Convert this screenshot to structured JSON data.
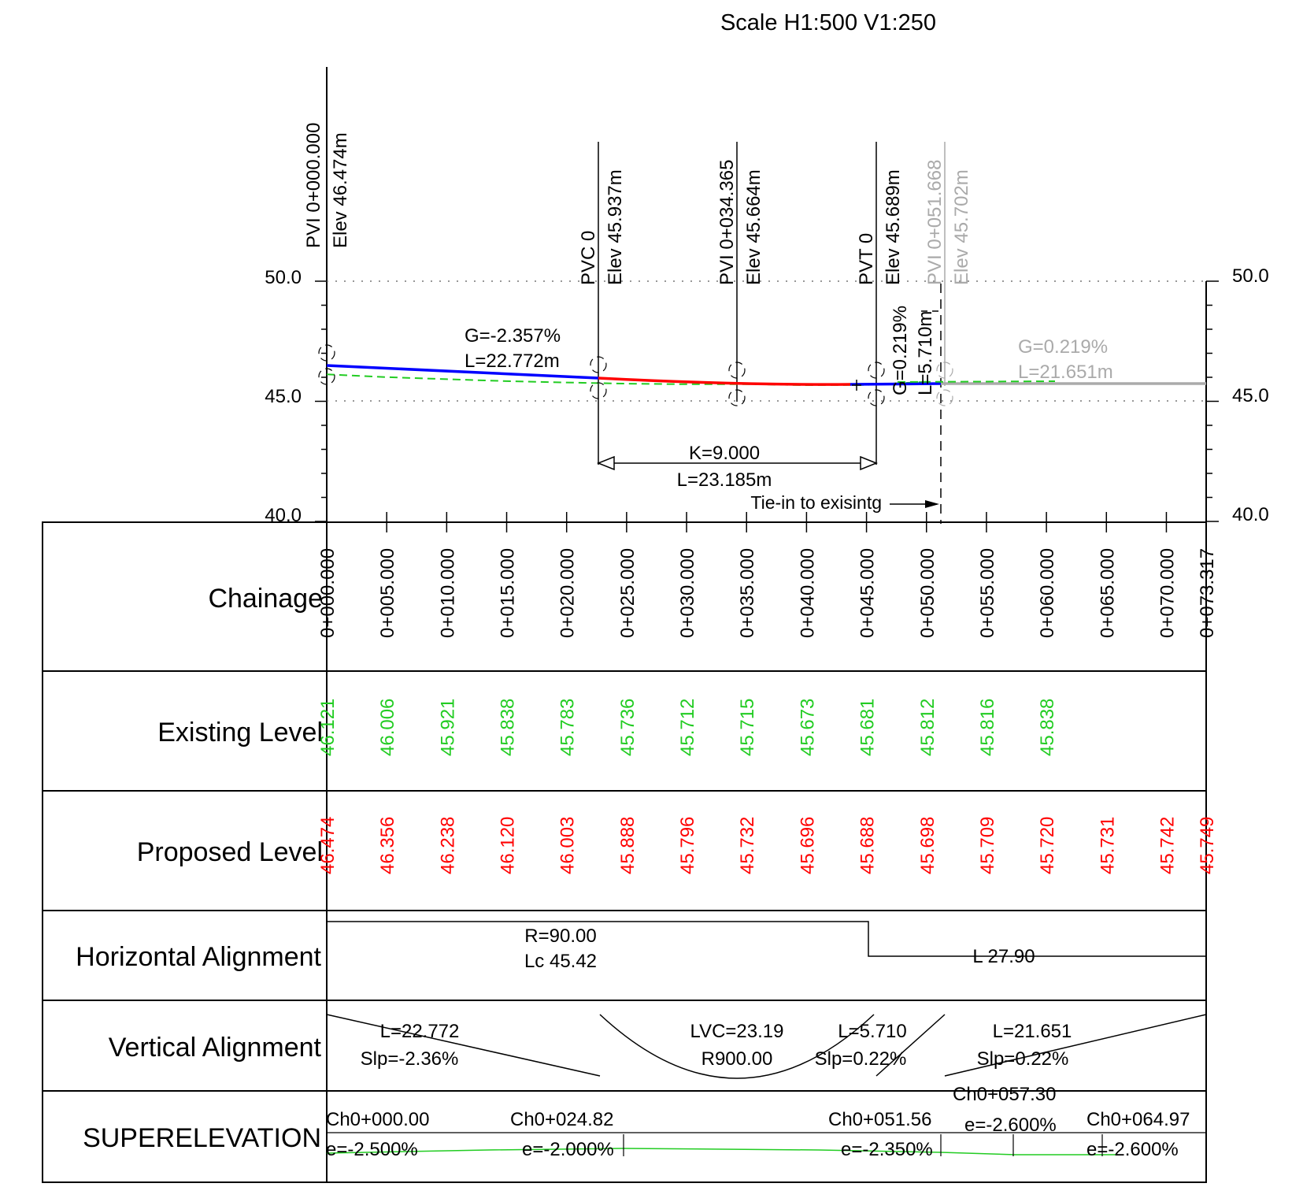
{
  "title": "Scale H1:500 V1:250",
  "colors": {
    "proposed": "#ff0000",
    "existing": "#22cc22",
    "grade_blue": "#0000ff",
    "tie_in_grey": "#aaaaaa",
    "linework": "#000000"
  },
  "profile": {
    "elevation_axis": {
      "min": 40.0,
      "max": 50.0,
      "labels_left": [
        "50.0",
        "45.0",
        "40.0"
      ],
      "labels_right": [
        "50.0",
        "45.0",
        "40.0"
      ]
    },
    "chainage_range": [
      0,
      73.317
    ],
    "pvi_labels": [
      {
        "chainage": 0,
        "line1": "PVI 0+000.000",
        "line2": "Elev 46.474m",
        "color": "#000000"
      },
      {
        "chainage": 22.772,
        "line1": "PVC 0",
        "line2": "Elev 45.937m",
        "color": "#000000"
      },
      {
        "chainage": 34.365,
        "line1": "PVI 0+034.365",
        "line2": "Elev 45.664m",
        "color": "#000000"
      },
      {
        "chainage": 45.957,
        "line1": "PVT 0",
        "line2": "Elev 45.689m",
        "color": "#000000"
      },
      {
        "chainage": 51.668,
        "line1": "PVI 0+051.668",
        "line2": "Elev 45.702m",
        "color": "#aaaaaa"
      }
    ],
    "grade_labels": {
      "g1": "G=-2.357%",
      "l1": "L=22.772m",
      "g2": "G=0.219%",
      "l2": "L=5.710m",
      "g3": "G=0.219%",
      "l3": "L=21.651m"
    },
    "curve_labels": {
      "k": "K=9.000",
      "l": "L=23.185m"
    },
    "tie_in_label": "Tie-in to exisintg"
  },
  "bands": {
    "chainage": {
      "label": "Chainage",
      "stations": [
        0,
        5,
        10,
        15,
        20,
        25,
        30,
        35,
        40,
        45,
        50,
        55,
        60,
        65,
        70,
        73.317
      ],
      "values": [
        "0+000.000",
        "0+005.000",
        "0+010.000",
        "0+015.000",
        "0+020.000",
        "0+025.000",
        "0+030.000",
        "0+035.000",
        "0+040.000",
        "0+045.000",
        "0+050.000",
        "0+055.000",
        "0+060.000",
        "0+065.000",
        "0+070.000",
        "0+073.317"
      ]
    },
    "existing": {
      "label": "Existing Level",
      "values": [
        "46.121",
        "46.006",
        "45.921",
        "45.838",
        "45.783",
        "45.736",
        "45.712",
        "45.715",
        "45.673",
        "45.681",
        "45.812",
        "45.816",
        "45.838"
      ]
    },
    "proposed": {
      "label": "Proposed Level",
      "values": [
        "46.474",
        "46.356",
        "46.238",
        "46.120",
        "46.003",
        "45.888",
        "45.796",
        "45.732",
        "45.696",
        "45.688",
        "45.698",
        "45.709",
        "45.720",
        "45.731",
        "45.742",
        "45.749"
      ]
    },
    "horizontal": {
      "label": "Horizontal Alignment",
      "curve_r": "R=90.00",
      "curve_lc": "Lc 45.42",
      "tangent_l": "L 27.90"
    },
    "vertical": {
      "label": "Vertical Alignment",
      "seg1_l": "L=22.772",
      "seg1_s": "Slp=-2.36%",
      "lvc": "LVC=23.19",
      "r": "R900.00",
      "seg2_l": "L=5.710",
      "seg2_s": "Slp=0.22%",
      "seg3_l": "L=21.651",
      "seg3_s": "Slp=0.22%"
    },
    "superelevation": {
      "label": "SUPERELEVATION",
      "entries": [
        {
          "ch": "Ch0+000.00",
          "e": "e=-2.500%"
        },
        {
          "ch": "Ch0+024.82",
          "e": "e=-2.000%"
        },
        {
          "ch": "Ch0+051.56",
          "e": "e=-2.350%"
        },
        {
          "ch": "Ch0+057.30",
          "e": "e=-2.600%"
        },
        {
          "ch": "Ch0+064.97",
          "e": "e=-2.600%"
        }
      ]
    }
  }
}
